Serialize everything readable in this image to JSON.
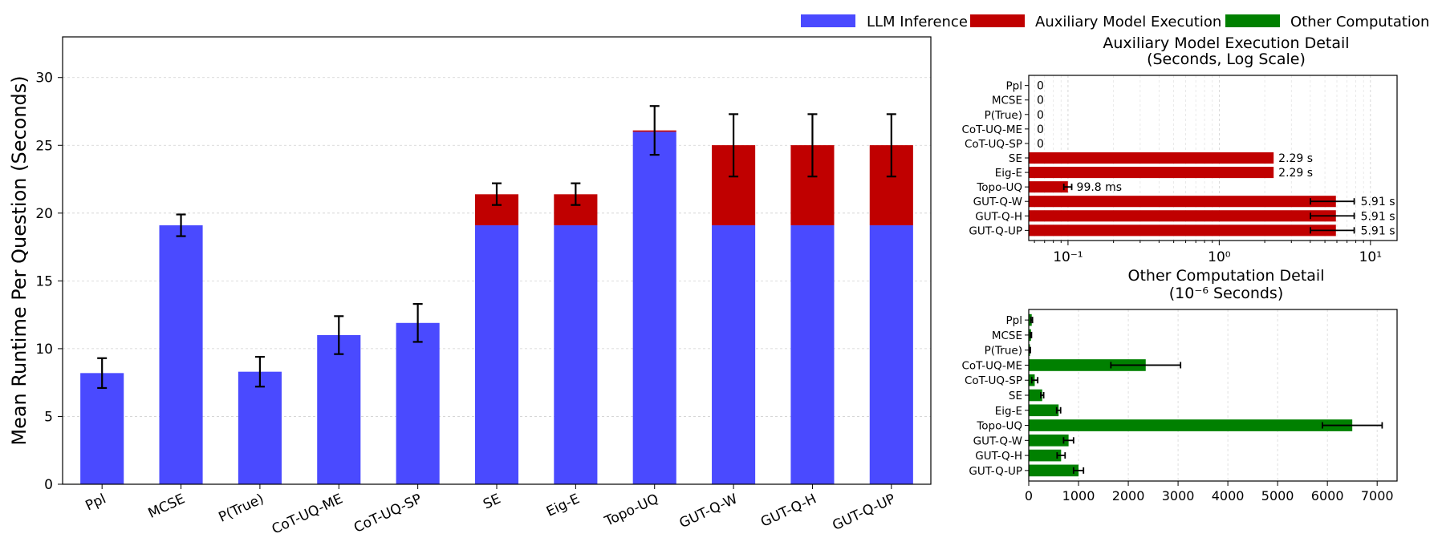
{
  "legend": {
    "placement": "top-right",
    "items": [
      {
        "label": "LLM Inference",
        "color": "#4a4aff"
      },
      {
        "label": "Auxiliary Model Execution",
        "color": "#c00000"
      },
      {
        "label": "Other Computation",
        "color": "#008000"
      }
    ]
  },
  "chart_data": [
    {
      "type": "bar",
      "stacked": true,
      "title": "",
      "xlabel": "",
      "ylabel": "Mean Runtime Per Question (Seconds)",
      "ylim": [
        0,
        33
      ],
      "yticks": [
        0,
        5,
        10,
        15,
        20,
        25,
        30
      ],
      "grid": true,
      "categories": [
        "Ppl",
        "MCSE",
        "P(True)",
        "CoT-UQ-ME",
        "CoT-UQ-SP",
        "SE",
        "Eig-E",
        "Topo-UQ",
        "GUT-Q-W",
        "GUT-Q-H",
        "GUT-Q-UP"
      ],
      "series": [
        {
          "name": "LLM Inference",
          "color": "#4a4aff",
          "values": [
            8.2,
            19.1,
            8.3,
            11.0,
            11.9,
            19.1,
            19.1,
            26.0,
            19.1,
            19.1,
            19.1
          ]
        },
        {
          "name": "Auxiliary Model Execution",
          "color": "#c00000",
          "values": [
            0,
            0,
            0,
            0,
            0,
            2.29,
            2.29,
            0.1,
            5.91,
            5.91,
            5.91
          ]
        }
      ],
      "totals": [
        8.2,
        19.1,
        8.3,
        11.0,
        11.9,
        21.4,
        21.4,
        26.1,
        25.0,
        25.0,
        25.0
      ],
      "error": [
        1.1,
        0.8,
        1.1,
        1.4,
        1.4,
        0.8,
        0.8,
        1.8,
        2.3,
        2.3,
        2.3
      ]
    },
    {
      "type": "bar",
      "orientation": "horizontal",
      "title": "Auxiliary Model Execution Detail",
      "subtitle": "(Seconds, Log Scale)",
      "xscale": "log",
      "xlim": [
        0.055,
        15
      ],
      "xticks": [
        0.1,
        1,
        10
      ],
      "xtick_labels": [
        "10⁻¹",
        "10⁰",
        "10¹"
      ],
      "grid": true,
      "color": "#c00000",
      "categories": [
        "Ppl",
        "MCSE",
        "P(True)",
        "CoT-UQ-ME",
        "CoT-UQ-SP",
        "SE",
        "Eig-E",
        "Topo-UQ",
        "GUT-Q-W",
        "GUT-Q-H",
        "GUT-Q-UP"
      ],
      "values": [
        0,
        0,
        0,
        0,
        0,
        2.29,
        2.29,
        0.0998,
        5.91,
        5.91,
        5.91
      ],
      "error": [
        0,
        0,
        0,
        0,
        0,
        0,
        0,
        0.006,
        1.9,
        1.9,
        1.9
      ],
      "data_labels": [
        "0",
        "0",
        "0",
        "0",
        "0",
        "2.29 s",
        "2.29 s",
        "99.8 ms",
        "5.91 s",
        "5.91 s",
        "5.91 s"
      ]
    },
    {
      "type": "bar",
      "orientation": "horizontal",
      "title": "Other Computation Detail",
      "subtitle": "(10⁻⁶ Seconds)",
      "xlim": [
        0,
        7400
      ],
      "xticks": [
        0,
        1000,
        2000,
        3000,
        4000,
        5000,
        6000,
        7000
      ],
      "grid": true,
      "color": "#008000",
      "categories": [
        "Ppl",
        "MCSE",
        "P(True)",
        "CoT-UQ-ME",
        "CoT-UQ-SP",
        "SE",
        "Eig-E",
        "Topo-UQ",
        "GUT-Q-W",
        "GUT-Q-H",
        "GUT-Q-UP"
      ],
      "values": [
        60,
        45,
        25,
        2350,
        120,
        270,
        600,
        6500,
        800,
        650,
        1000
      ],
      "error": [
        15,
        10,
        8,
        700,
        60,
        30,
        40,
        600,
        100,
        80,
        100
      ]
    }
  ]
}
